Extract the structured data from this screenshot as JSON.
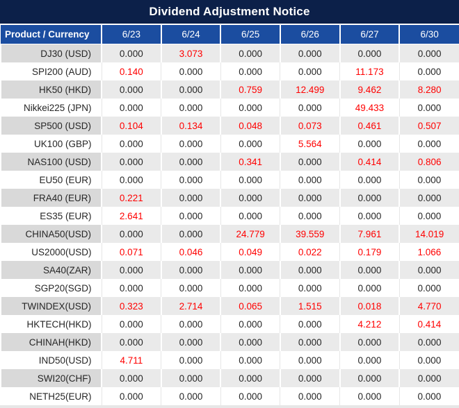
{
  "title": "Dividend Adjustment Notice",
  "columns": [
    "Product / Currency",
    "6/23",
    "6/24",
    "6/25",
    "6/26",
    "6/27",
    "6/30"
  ],
  "rows": [
    {
      "product": "DJ30 (USD)",
      "values": [
        "0.000",
        "3.073",
        "0.000",
        "0.000",
        "0.000",
        "0.000"
      ]
    },
    {
      "product": "SPI200 (AUD)",
      "values": [
        "0.140",
        "0.000",
        "0.000",
        "0.000",
        "11.173",
        "0.000"
      ]
    },
    {
      "product": "HK50 (HKD)",
      "values": [
        "0.000",
        "0.000",
        "0.759",
        "12.499",
        "9.462",
        "8.280"
      ]
    },
    {
      "product": "Nikkei225 (JPN)",
      "values": [
        "0.000",
        "0.000",
        "0.000",
        "0.000",
        "49.433",
        "0.000"
      ]
    },
    {
      "product": "SP500 (USD)",
      "values": [
        "0.104",
        "0.134",
        "0.048",
        "0.073",
        "0.461",
        "0.507"
      ]
    },
    {
      "product": "UK100 (GBP)",
      "values": [
        "0.000",
        "0.000",
        "0.000",
        "5.564",
        "0.000",
        "0.000"
      ]
    },
    {
      "product": "NAS100 (USD)",
      "values": [
        "0.000",
        "0.000",
        "0.341",
        "0.000",
        "0.414",
        "0.806"
      ]
    },
    {
      "product": "EU50 (EUR)",
      "values": [
        "0.000",
        "0.000",
        "0.000",
        "0.000",
        "0.000",
        "0.000"
      ]
    },
    {
      "product": "FRA40 (EUR)",
      "values": [
        "0.221",
        "0.000",
        "0.000",
        "0.000",
        "0.000",
        "0.000"
      ]
    },
    {
      "product": "ES35 (EUR)",
      "values": [
        "2.641",
        "0.000",
        "0.000",
        "0.000",
        "0.000",
        "0.000"
      ]
    },
    {
      "product": "CHINA50(USD)",
      "values": [
        "0.000",
        "0.000",
        "24.779",
        "39.559",
        "7.961",
        "14.019"
      ]
    },
    {
      "product": "US2000(USD)",
      "values": [
        "0.071",
        "0.046",
        "0.049",
        "0.022",
        "0.179",
        "1.066"
      ]
    },
    {
      "product": "SA40(ZAR)",
      "values": [
        "0.000",
        "0.000",
        "0.000",
        "0.000",
        "0.000",
        "0.000"
      ]
    },
    {
      "product": "SGP20(SGD)",
      "values": [
        "0.000",
        "0.000",
        "0.000",
        "0.000",
        "0.000",
        "0.000"
      ]
    },
    {
      "product": "TWINDEX(USD)",
      "values": [
        "0.323",
        "2.714",
        "0.065",
        "1.515",
        "0.018",
        "4.770"
      ]
    },
    {
      "product": "HKTECH(HKD)",
      "values": [
        "0.000",
        "0.000",
        "0.000",
        "0.000",
        "4.212",
        "0.414"
      ]
    },
    {
      "product": "CHINAH(HKD)",
      "values": [
        "0.000",
        "0.000",
        "0.000",
        "0.000",
        "0.000",
        "0.000"
      ]
    },
    {
      "product": "IND50(USD)",
      "values": [
        "4.711",
        "0.000",
        "0.000",
        "0.000",
        "0.000",
        "0.000"
      ]
    },
    {
      "product": "SWI20(CHF)",
      "values": [
        "0.000",
        "0.000",
        "0.000",
        "0.000",
        "0.000",
        "0.000"
      ]
    },
    {
      "product": "NETH25(EUR)",
      "values": [
        "0.000",
        "0.000",
        "0.000",
        "0.000",
        "0.000",
        "0.000"
      ]
    }
  ],
  "colors": {
    "title_bg": "#0C2049",
    "header_bg": "#1B4DA0",
    "header_text": "#FFFFFF",
    "gray_product_bg": "#D9D9D9",
    "gray_value_bg": "#EAEAEA",
    "white_row_bg": "#FFFFFF",
    "value_text": "#262626",
    "adjustment_text": "#FF0000",
    "bottom_strip": "#E7E7E7"
  }
}
